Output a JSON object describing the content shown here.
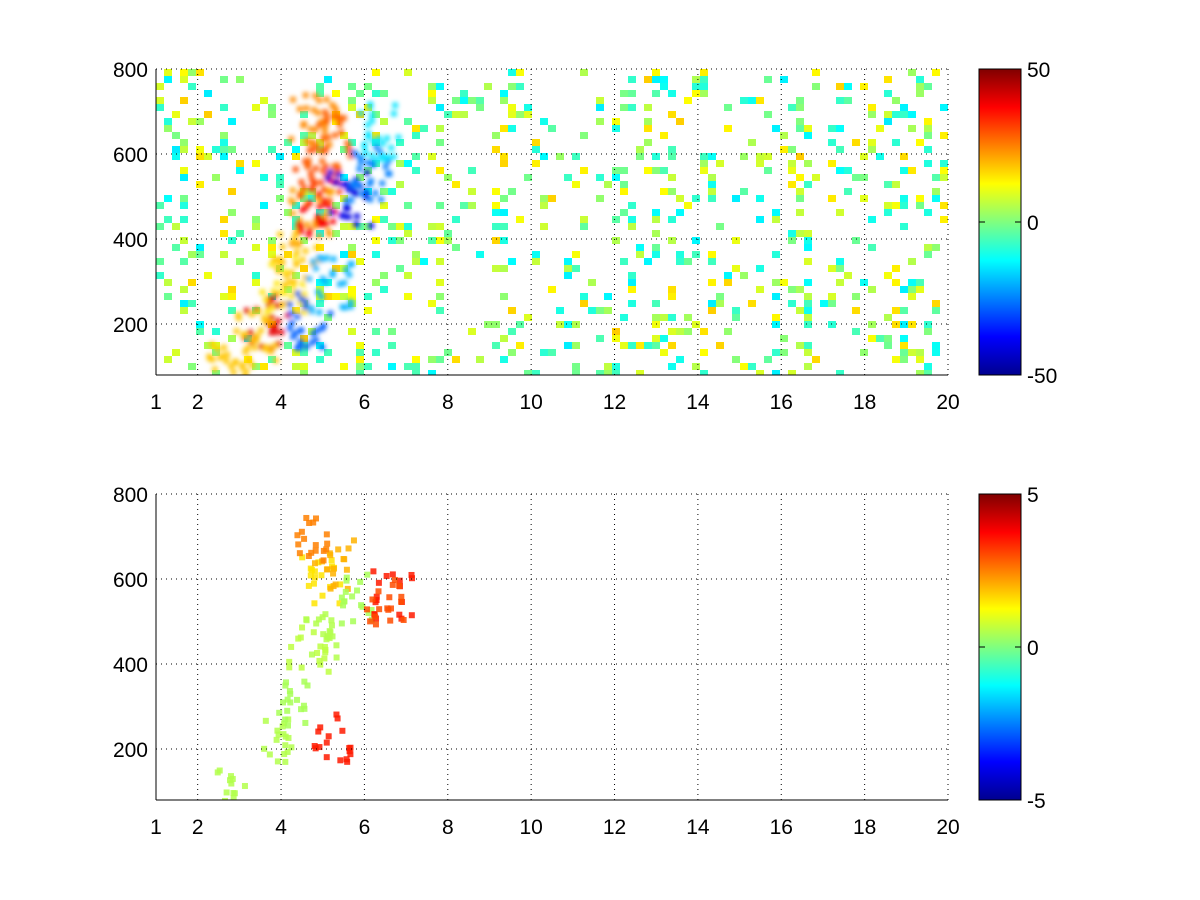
{
  "chart_data": [
    {
      "type": "heatmap",
      "title": "",
      "xlabel": "",
      "ylabel": "",
      "xlim": [
        1,
        20
      ],
      "ylim": [
        80,
        800
      ],
      "x_ticks": [
        1,
        2,
        4,
        6,
        8,
        10,
        12,
        14,
        16,
        18,
        20
      ],
      "y_ticks": [
        200,
        400,
        600,
        800
      ],
      "grid": true,
      "colormap": "jet",
      "colorbar": {
        "min": -50,
        "max": 50,
        "ticks": [
          -50,
          0,
          50
        ]
      },
      "features": [
        {
          "x": 3.6,
          "y": 210,
          "value": 40
        },
        {
          "x": 3.3,
          "y": 175,
          "value": 18
        },
        {
          "x": 4.0,
          "y": 300,
          "value": 15
        },
        {
          "x": 4.3,
          "y": 360,
          "value": 18
        },
        {
          "x": 4.6,
          "y": 460,
          "value": 22
        },
        {
          "x": 4.9,
          "y": 480,
          "value": 38
        },
        {
          "x": 4.8,
          "y": 560,
          "value": 30
        },
        {
          "x": 4.7,
          "y": 680,
          "value": 24
        },
        {
          "x": 5.1,
          "y": 640,
          "value": 28
        },
        {
          "x": 4.6,
          "y": 215,
          "value": -28
        },
        {
          "x": 5.1,
          "y": 300,
          "value": -20
        },
        {
          "x": 5.6,
          "y": 500,
          "value": -40
        },
        {
          "x": 6.0,
          "y": 560,
          "value": -25
        },
        {
          "x": 6.2,
          "y": 660,
          "value": -15
        },
        {
          "x": 2.6,
          "y": 95,
          "value": 18
        }
      ]
    },
    {
      "type": "heatmap",
      "title": "",
      "xlabel": "",
      "ylabel": "",
      "xlim": [
        1,
        20
      ],
      "ylim": [
        80,
        800
      ],
      "x_ticks": [
        1,
        2,
        4,
        6,
        8,
        10,
        12,
        14,
        16,
        18,
        20
      ],
      "y_ticks": [
        200,
        400,
        600,
        800
      ],
      "grid": true,
      "colormap": "jet",
      "colorbar": {
        "min": -5,
        "max": 5,
        "ticks": [
          -5,
          0,
          5
        ]
      },
      "features": [
        {
          "x": 3.7,
          "y": 230,
          "value": 0.5
        },
        {
          "x": 4.2,
          "y": 320,
          "value": 0.4
        },
        {
          "x": 4.6,
          "y": 440,
          "value": 0.6
        },
        {
          "x": 5.0,
          "y": 480,
          "value": 0.5
        },
        {
          "x": 4.9,
          "y": 600,
          "value": 1.5
        },
        {
          "x": 5.2,
          "y": 640,
          "value": 2.0
        },
        {
          "x": 4.8,
          "y": 700,
          "value": 2.5
        },
        {
          "x": 5.8,
          "y": 560,
          "value": 0.4
        },
        {
          "x": 6.6,
          "y": 570,
          "value": 3.5
        },
        {
          "x": 6.4,
          "y": 555,
          "value": 3.0
        },
        {
          "x": 5.2,
          "y": 235,
          "value": 3.5
        },
        {
          "x": 2.6,
          "y": 100,
          "value": 0.5
        }
      ]
    }
  ]
}
